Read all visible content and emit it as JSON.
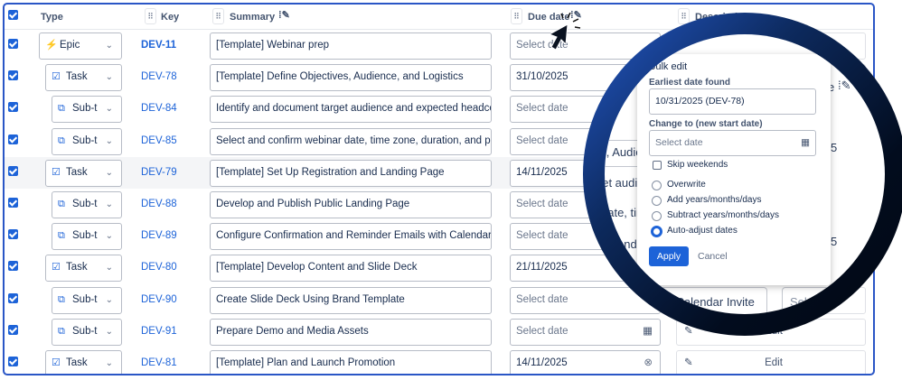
{
  "header": {
    "type": "Type",
    "key": "Key",
    "summary": "Summary",
    "due_date": "Due date",
    "description": "Description"
  },
  "rows": [
    {
      "type": "Epic",
      "icon": "epic-icon",
      "level": 0,
      "key": "DEV-11",
      "summary": "[Template] Webinar prep",
      "due": "Select date",
      "due_set": false
    },
    {
      "type": "Task",
      "icon": "task-icon",
      "level": 1,
      "key": "DEV-78",
      "summary": "[Template] Define Objectives, Audience, and Logistics",
      "due": "31/10/2025",
      "due_set": true
    },
    {
      "type": "Sub-t",
      "icon": "subtask-icon",
      "level": 2,
      "key": "DEV-84",
      "summary": "Identify and document target audience and expected headcount",
      "due": "Select date",
      "due_set": false
    },
    {
      "type": "Sub-t",
      "icon": "subtask-icon",
      "level": 2,
      "key": "DEV-85",
      "summary": "Select and confirm webinar date, time zone, duration, and platform",
      "due": "Select date",
      "due_set": false
    },
    {
      "type": "Task",
      "icon": "task-icon",
      "level": 1,
      "key": "DEV-79",
      "summary": "[Template] Set Up Registration and Landing Page",
      "due": "14/11/2025",
      "due_set": true
    },
    {
      "type": "Sub-t",
      "icon": "subtask-icon",
      "level": 2,
      "key": "DEV-88",
      "summary": "Develop and Publish Public Landing Page",
      "due": "Select date",
      "due_set": false
    },
    {
      "type": "Sub-t",
      "icon": "subtask-icon",
      "level": 2,
      "key": "DEV-89",
      "summary": "Configure Confirmation and Reminder Emails with Calendar Invite",
      "due": "Select date",
      "due_set": false
    },
    {
      "type": "Task",
      "icon": "task-icon",
      "level": 1,
      "key": "DEV-80",
      "summary": "[Template] Develop Content and Slide Deck",
      "due": "21/11/2025",
      "due_set": true
    },
    {
      "type": "Sub-t",
      "icon": "subtask-icon",
      "level": 2,
      "key": "DEV-90",
      "summary": "Create Slide Deck Using Brand Template",
      "due": "Select date",
      "due_set": false
    },
    {
      "type": "Sub-t",
      "icon": "subtask-icon",
      "level": 2,
      "key": "DEV-91",
      "summary": "Prepare Demo and Media Assets",
      "due": "Select date",
      "due_set": false,
      "desc": "Edit"
    },
    {
      "type": "Task",
      "icon": "task-icon",
      "level": 1,
      "key": "DEV-81",
      "summary": "[Template] Plan and Launch Promotion",
      "due": "14/11/2025",
      "due_set": true,
      "desc": "Edit"
    }
  ],
  "magnified_fragments": [
    "es, Audien",
    "get audie",
    "date, tim",
    "and l",
    "th Calendar Invite",
    "Sel",
    "5",
    "5",
    "e"
  ],
  "bulk_edit": {
    "title": "Bulk edit",
    "earliest_label": "Earliest date found",
    "earliest_value": "10/31/2025 (DEV-78)",
    "change_label": "Change to (new start date)",
    "change_placeholder": "Select date",
    "skip_weekends": "Skip weekends",
    "skip_weekends_checked": false,
    "options": [
      "Overwrite",
      "Add years/months/days",
      "Subtract years/months/days",
      "Auto-adjust dates"
    ],
    "selected_option": "Auto-adjust dates",
    "apply": "Apply",
    "cancel": "Cancel"
  },
  "colors": {
    "accent": "#1d63d8",
    "frame": "#2a56c6",
    "epic": "#b44fe0"
  }
}
